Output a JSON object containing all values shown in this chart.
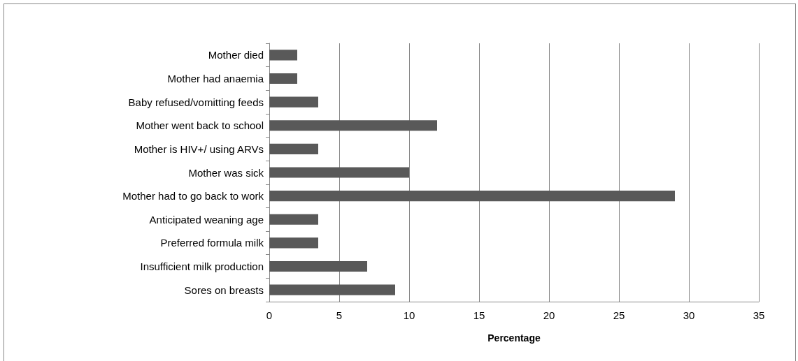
{
  "chart_data": {
    "type": "bar",
    "orientation": "horizontal",
    "xlabel": "Percentage",
    "categories": [
      "Mother died",
      "Mother had anaemia",
      "Baby refused/vomitting feeds",
      "Mother went back to school",
      "Mother is HIV+/ using ARVs",
      "Mother was sick",
      "Mother had to go back to work",
      "Anticipated weaning age",
      "Preferred formula milk",
      "Insufficient milk production",
      "Sores on breasts"
    ],
    "values": [
      2,
      2,
      3.5,
      12,
      3.5,
      10,
      29,
      3.5,
      3.5,
      7,
      9
    ],
    "color": "#595959",
    "xlim": [
      0,
      35
    ],
    "xticks": [
      0,
      5,
      10,
      15,
      20,
      25,
      30,
      35
    ],
    "grid": "x"
  }
}
